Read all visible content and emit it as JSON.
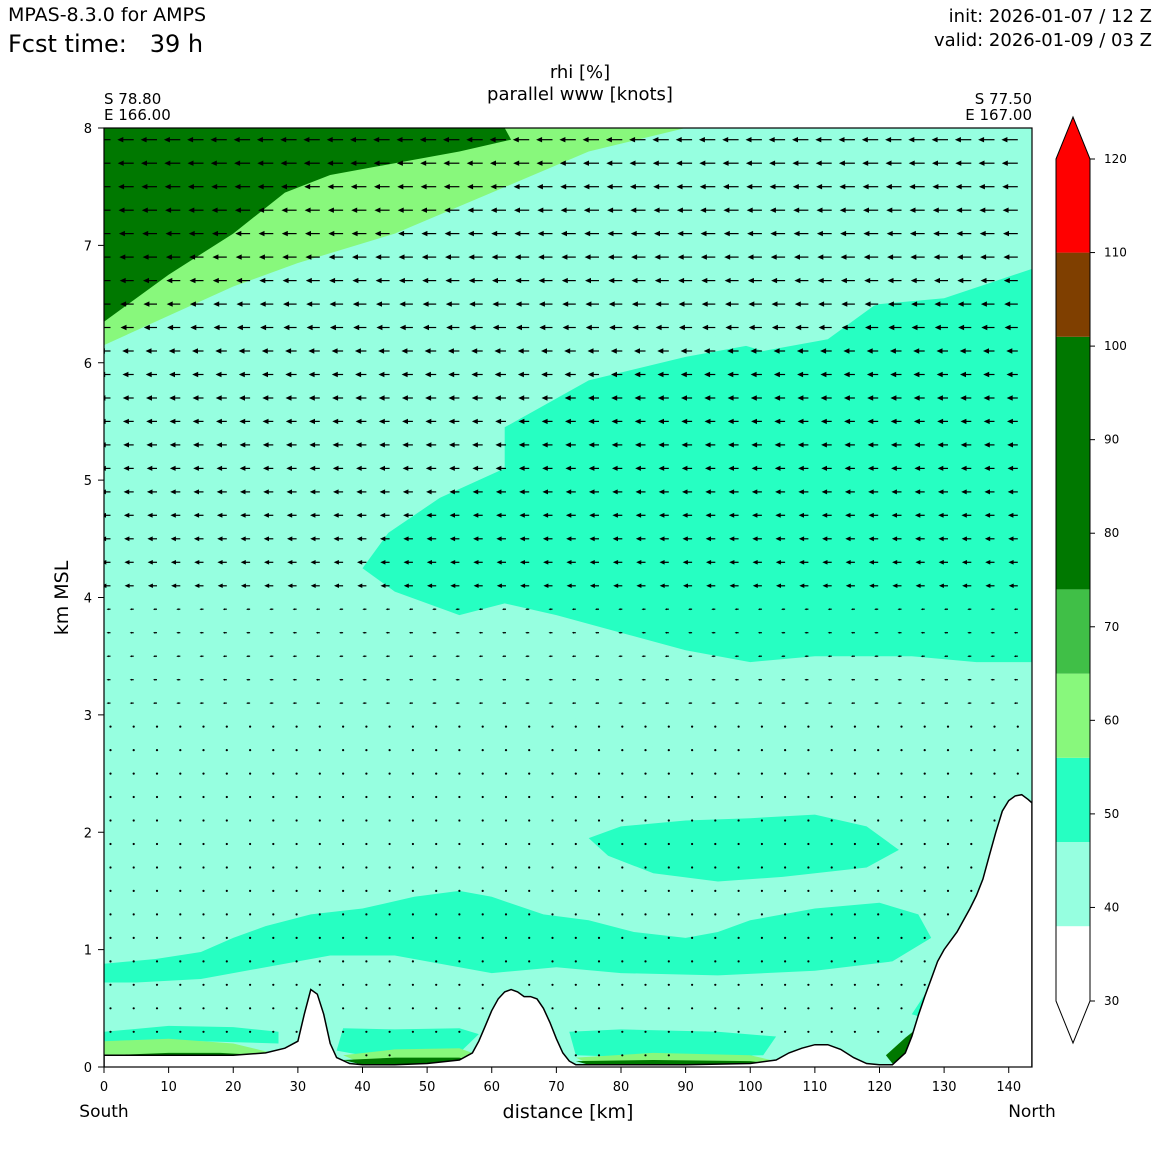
{
  "header": {
    "model": "MPAS-8.3.0 for AMPS",
    "fcst_label": "Fcst time:",
    "fcst_value": "39 h",
    "init": "init: 2026-01-07 / 12 Z",
    "valid": "valid: 2026-01-09 / 03 Z"
  },
  "chart_data": {
    "type": "contour cross-section",
    "title": "rhi [%]",
    "subtitle": "parallel www [knots]",
    "xlabel": "distance [km]",
    "ylabel": "km MSL",
    "xlim": [
      0,
      143.6
    ],
    "ylim": [
      0,
      8
    ],
    "x_ticks": [
      0,
      10,
      20,
      30,
      40,
      50,
      60,
      70,
      80,
      90,
      100,
      110,
      120,
      130,
      140
    ],
    "y_ticks": [
      0,
      1,
      2,
      3,
      4,
      5,
      6,
      7,
      8
    ],
    "x_start_label": "South",
    "x_end_label": "North",
    "start_point": {
      "lat": "S 78.80",
      "lon": "E 166.00"
    },
    "end_point": {
      "lat": "S 77.50",
      "lon": "E 167.00"
    },
    "colorbar": {
      "levels": [
        30,
        40,
        50,
        60,
        70,
        80,
        90,
        100,
        110,
        120
      ],
      "tick_labels": [
        "30",
        "40",
        "50",
        "60",
        "70",
        "80",
        "90",
        "100",
        "110",
        "120"
      ],
      "colors": [
        {
          "from": 30,
          "to": 38,
          "color": "#ffffff"
        },
        {
          "from": 38,
          "to": 47,
          "color": "#96ffe0"
        },
        {
          "from": 47,
          "to": 56,
          "color": "#26ffc2"
        },
        {
          "from": 56,
          "to": 65,
          "color": "#88f87c"
        },
        {
          "from": 65,
          "to": 74,
          "color": "#40bf47"
        },
        {
          "from": 74,
          "to": 101,
          "color": "#007800"
        },
        {
          "from": 101,
          "to": 110,
          "color": "#7f3f00"
        },
        {
          "from": 110,
          "to": 120,
          "color": "#ff0000"
        }
      ],
      "extend": "both"
    },
    "terrain": {
      "x": [
        0,
        10,
        20,
        25,
        28,
        30,
        31,
        32,
        33,
        34,
        35,
        36,
        38,
        40,
        45,
        50,
        55,
        57,
        58,
        59,
        60,
        61,
        62,
        63,
        64,
        65,
        66,
        67,
        68,
        69,
        70,
        71,
        72,
        73,
        75,
        80,
        90,
        100,
        104,
        106,
        108,
        110,
        112,
        114,
        116,
        118,
        120,
        122,
        124,
        125,
        126,
        127,
        128,
        129,
        130,
        132,
        134,
        135,
        136,
        137,
        138,
        139,
        140,
        141,
        142,
        143,
        143.6
      ],
      "y": [
        0.1,
        0.1,
        0.1,
        0.12,
        0.16,
        0.22,
        0.45,
        0.66,
        0.62,
        0.45,
        0.2,
        0.08,
        0.03,
        0.02,
        0.02,
        0.03,
        0.06,
        0.12,
        0.22,
        0.35,
        0.48,
        0.58,
        0.64,
        0.66,
        0.64,
        0.6,
        0.6,
        0.58,
        0.5,
        0.38,
        0.24,
        0.12,
        0.05,
        0.02,
        0.02,
        0.02,
        0.02,
        0.03,
        0.06,
        0.12,
        0.16,
        0.19,
        0.19,
        0.15,
        0.08,
        0.03,
        0.02,
        0.02,
        0.12,
        0.26,
        0.44,
        0.6,
        0.75,
        0.9,
        1.0,
        1.15,
        1.35,
        1.46,
        1.6,
        1.8,
        2.0,
        2.18,
        2.27,
        2.31,
        2.32,
        2.28,
        2.25
      ]
    },
    "rhi_regions": [
      {
        "level": 47,
        "points": [
          [
            0,
            0.88
          ],
          [
            8,
            0.92
          ],
          [
            15,
            0.98
          ],
          [
            20,
            1.1
          ],
          [
            25,
            1.2
          ],
          [
            32,
            1.3
          ],
          [
            40,
            1.35
          ],
          [
            48,
            1.45
          ],
          [
            55,
            1.5
          ],
          [
            60,
            1.45
          ],
          [
            68,
            1.3
          ],
          [
            75,
            1.25
          ],
          [
            82,
            1.15
          ],
          [
            90,
            1.1
          ],
          [
            95,
            1.15
          ],
          [
            100,
            1.25
          ],
          [
            110,
            1.35
          ],
          [
            120,
            1.4
          ],
          [
            126,
            1.3
          ],
          [
            128,
            1.1
          ],
          [
            122,
            0.9
          ],
          [
            110,
            0.82
          ],
          [
            95,
            0.78
          ],
          [
            80,
            0.8
          ],
          [
            70,
            0.85
          ],
          [
            60,
            0.8
          ],
          [
            50,
            0.9
          ],
          [
            45,
            0.95
          ],
          [
            35,
            0.95
          ],
          [
            25,
            0.85
          ],
          [
            15,
            0.75
          ],
          [
            5,
            0.72
          ],
          [
            0,
            0.72
          ]
        ]
      },
      {
        "level": 47,
        "points": [
          [
            75,
            1.95
          ],
          [
            80,
            2.05
          ],
          [
            90,
            2.1
          ],
          [
            100,
            2.12
          ],
          [
            110,
            2.15
          ],
          [
            118,
            2.05
          ],
          [
            123,
            1.85
          ],
          [
            118,
            1.7
          ],
          [
            105,
            1.62
          ],
          [
            95,
            1.58
          ],
          [
            85,
            1.65
          ],
          [
            78,
            1.8
          ]
        ]
      },
      {
        "level": 47,
        "points": [
          [
            0,
            0.3
          ],
          [
            10,
            0.35
          ],
          [
            20,
            0.34
          ],
          [
            27,
            0.3
          ],
          [
            27,
            0.2
          ],
          [
            15,
            0.22
          ],
          [
            0,
            0.18
          ]
        ]
      },
      {
        "level": 47,
        "points": [
          [
            37,
            0.33
          ],
          [
            45,
            0.32
          ],
          [
            55,
            0.33
          ],
          [
            58,
            0.28
          ],
          [
            55,
            0.12
          ],
          [
            40,
            0.1
          ],
          [
            36,
            0.14
          ]
        ]
      },
      {
        "level": 47,
        "points": [
          [
            72,
            0.3
          ],
          [
            80,
            0.32
          ],
          [
            95,
            0.3
          ],
          [
            104,
            0.26
          ],
          [
            102,
            0.1
          ],
          [
            85,
            0.08
          ],
          [
            73,
            0.1
          ]
        ]
      },
      {
        "level": 47,
        "points": [
          [
            125,
            0.45
          ],
          [
            128,
            0.7
          ],
          [
            130,
            0.55
          ],
          [
            128,
            0.4
          ]
        ]
      },
      {
        "level": 47,
        "points": [
          [
            0,
            8
          ],
          [
            143.6,
            8
          ],
          [
            143.6,
            3.45
          ],
          [
            135,
            3.45
          ],
          [
            125,
            3.5
          ],
          [
            110,
            3.5
          ],
          [
            100,
            3.45
          ],
          [
            90,
            3.55
          ],
          [
            80,
            3.7
          ],
          [
            70,
            3.85
          ],
          [
            62,
            3.95
          ],
          [
            55,
            3.85
          ],
          [
            45,
            4.05
          ],
          [
            40,
            4.25
          ],
          [
            44,
            4.55
          ],
          [
            52,
            4.85
          ],
          [
            62,
            5.1
          ],
          [
            62,
            5.45
          ],
          [
            75,
            5.85
          ],
          [
            90,
            6.05
          ],
          [
            100,
            6.15
          ],
          [
            110,
            6.35
          ],
          [
            120,
            6.5
          ],
          [
            130,
            6.55
          ],
          [
            143.6,
            6.8
          ],
          [
            143.6,
            8
          ]
        ]
      },
      {
        "level": 38,
        "points": [
          [
            115,
            8
          ],
          [
            143.6,
            8
          ],
          [
            143.6,
            7.2
          ],
          [
            136,
            7.4
          ],
          [
            130,
            7.5
          ],
          [
            126,
            7.65
          ],
          [
            120,
            7.8
          ]
        ]
      },
      {
        "level": 38,
        "points": [
          [
            72,
            6.95
          ],
          [
            80,
            6.85
          ],
          [
            90,
            6.75
          ],
          [
            100,
            6.7
          ],
          [
            110,
            6.72
          ],
          [
            118,
            6.85
          ],
          [
            125,
            6.9
          ],
          [
            122,
            6.6
          ],
          [
            112,
            6.2
          ],
          [
            102,
            6.1
          ],
          [
            90,
            6.3
          ],
          [
            80,
            6.6
          ]
        ]
      },
      {
        "level": 56,
        "points": [
          [
            0,
            6.15
          ],
          [
            10,
            6.4
          ],
          [
            20,
            6.65
          ],
          [
            30,
            6.85
          ],
          [
            45,
            7.1
          ],
          [
            60,
            7.45
          ],
          [
            75,
            7.8
          ],
          [
            90,
            8
          ],
          [
            60,
            8
          ],
          [
            40,
            8
          ],
          [
            0,
            8
          ]
        ]
      },
      {
        "level": 56,
        "points": [
          [
            0,
            0.22
          ],
          [
            10,
            0.24
          ],
          [
            20,
            0.2
          ],
          [
            26,
            0.12
          ],
          [
            20,
            0.1
          ],
          [
            0,
            0.1
          ]
        ]
      },
      {
        "level": 56,
        "points": [
          [
            37,
            0.1
          ],
          [
            45,
            0.15
          ],
          [
            55,
            0.16
          ],
          [
            58,
            0.1
          ],
          [
            55,
            0.03
          ],
          [
            40,
            0.03
          ]
        ]
      },
      {
        "level": 56,
        "points": [
          [
            73,
            0.08
          ],
          [
            85,
            0.12
          ],
          [
            100,
            0.1
          ],
          [
            104,
            0.05
          ],
          [
            90,
            0.03
          ],
          [
            75,
            0.03
          ]
        ]
      },
      {
        "level": 74,
        "points": [
          [
            0,
            6.35
          ],
          [
            10,
            6.75
          ],
          [
            20,
            7.1
          ],
          [
            28,
            7.45
          ],
          [
            35,
            7.6
          ],
          [
            45,
            7.7
          ],
          [
            55,
            7.8
          ],
          [
            63,
            7.9
          ],
          [
            62,
            8
          ],
          [
            0,
            8
          ]
        ]
      },
      {
        "level": 74,
        "points": [
          [
            0,
            0.1
          ],
          [
            10,
            0.12
          ],
          [
            18,
            0.12
          ],
          [
            25,
            0.1
          ],
          [
            20,
            0.1
          ],
          [
            0,
            0.1
          ]
        ]
      },
      {
        "level": 74,
        "points": [
          [
            37,
            0.06
          ],
          [
            45,
            0.08
          ],
          [
            55,
            0.08
          ],
          [
            57,
            0.05
          ],
          [
            50,
            0.02
          ],
          [
            40,
            0.02
          ]
        ]
      },
      {
        "level": 74,
        "points": [
          [
            73,
            0.05
          ],
          [
            85,
            0.06
          ],
          [
            100,
            0.05
          ],
          [
            103,
            0.03
          ],
          [
            90,
            0.02
          ],
          [
            75,
            0.02
          ]
        ]
      },
      {
        "level": 74,
        "points": [
          [
            121,
            0.1
          ],
          [
            124,
            0.25
          ],
          [
            127,
            0.38
          ],
          [
            125,
            0.15
          ],
          [
            122,
            0.03
          ]
        ]
      },
      {
        "level": 38,
        "points": [
          [
            0,
            3.9
          ],
          [
            10,
            3.75
          ],
          [
            20,
            3.6
          ],
          [
            30,
            3.5
          ],
          [
            40,
            3.4
          ],
          [
            55,
            3.25
          ],
          [
            57,
            3.0
          ],
          [
            50,
            2.95
          ],
          [
            40,
            2.98
          ],
          [
            30,
            3.05
          ],
          [
            20,
            3.02
          ],
          [
            10,
            2.95
          ],
          [
            0,
            2.95
          ]
        ]
      },
      {
        "level": 38,
        "points": [
          [
            71,
            3.25
          ],
          [
            80,
            3.15
          ],
          [
            90,
            3.05
          ],
          [
            100,
            2.95
          ],
          [
            112,
            2.9
          ],
          [
            104,
            2.8
          ],
          [
            95,
            2.62
          ],
          [
            88,
            2.7
          ],
          [
            78,
            2.8
          ],
          [
            72,
            3.0
          ]
        ]
      },
      {
        "level": 38,
        "points": [
          [
            0,
            5.45
          ],
          [
            6,
            5.5
          ],
          [
            15,
            5.55
          ],
          [
            8,
            5.62
          ],
          [
            0,
            5.6
          ]
        ]
      },
      {
        "level": 38,
        "points": [
          [
            0,
            0.55
          ],
          [
            8,
            0.52
          ],
          [
            14,
            0.48
          ],
          [
            8,
            0.45
          ],
          [
            0,
            0.47
          ]
        ]
      },
      {
        "level": 38,
        "points": [
          [
            94,
            0.4
          ],
          [
            105,
            0.36
          ],
          [
            112,
            0.32
          ],
          [
            103,
            0.3
          ],
          [
            94,
            0.34
          ]
        ]
      }
    ],
    "wind": {
      "x_start": 1,
      "x_step": 3.6,
      "y_start": 0.1,
      "y_step": 0.2,
      "direction": "toward_south"
    }
  }
}
